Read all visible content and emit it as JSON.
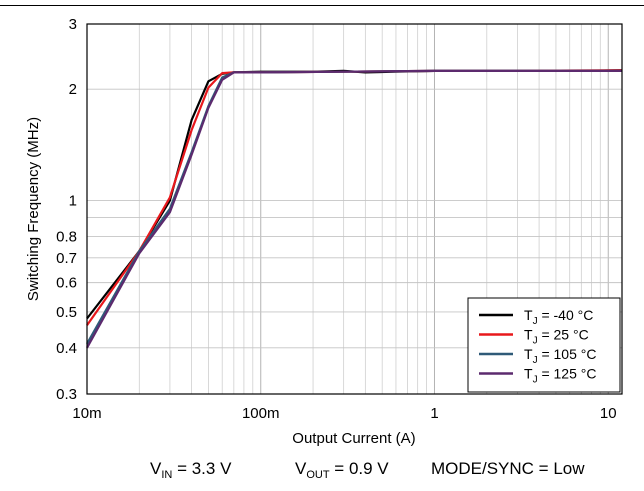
{
  "chart_data": {
    "type": "line",
    "x_scale": "log",
    "y_scale": "log",
    "xlim": [
      0.01,
      12
    ],
    "ylim": [
      0.3,
      3
    ],
    "grid": true,
    "legend_position": "bottom-right",
    "xlabel": "Output Current (A)",
    "ylabel": "Switching Frequency (MHz)",
    "x_ticks": [
      {
        "value": 0.01,
        "label": "10m"
      },
      {
        "value": 0.1,
        "label": "100m"
      },
      {
        "value": 1,
        "label": "1"
      },
      {
        "value": 10,
        "label": "10"
      }
    ],
    "y_ticks": [
      {
        "value": 0.3,
        "label": "0.3"
      },
      {
        "value": 0.4,
        "label": "0.4"
      },
      {
        "value": 0.5,
        "label": "0.5"
      },
      {
        "value": 0.6,
        "label": "0.6"
      },
      {
        "value": 0.7,
        "label": "0.7"
      },
      {
        "value": 0.8,
        "label": "0.8"
      },
      {
        "value": 1,
        "label": "1"
      },
      {
        "value": 2,
        "label": "2"
      },
      {
        "value": 3,
        "label": "3"
      }
    ],
    "series": [
      {
        "name_main": "T",
        "name_sub": "J",
        "name_rest": " = -40 °C",
        "color": "#000000",
        "x": [
          0.01,
          0.02,
          0.03,
          0.04,
          0.05,
          0.06,
          0.07,
          0.1,
          0.2,
          0.3,
          0.4,
          0.6,
          1,
          2,
          5,
          8,
          12
        ],
        "y": [
          0.48,
          0.73,
          1.0,
          1.65,
          2.1,
          2.2,
          2.22,
          2.23,
          2.23,
          2.24,
          2.22,
          2.23,
          2.24,
          2.24,
          2.24,
          2.24,
          2.25
        ]
      },
      {
        "name_main": "T",
        "name_sub": "J",
        "name_rest": " = 25 °C",
        "color": "#e8181c",
        "x": [
          0.01,
          0.02,
          0.03,
          0.04,
          0.05,
          0.06,
          0.07,
          0.1,
          0.3,
          1,
          3,
          12
        ],
        "y": [
          0.46,
          0.73,
          1.02,
          1.55,
          2.02,
          2.21,
          2.22,
          2.22,
          2.23,
          2.24,
          2.24,
          2.25
        ]
      },
      {
        "name_main": "T",
        "name_sub": "J",
        "name_rest": " = 105 °C",
        "color": "#2f5a78",
        "x": [
          0.01,
          0.02,
          0.03,
          0.04,
          0.05,
          0.06,
          0.07,
          0.1,
          0.3,
          1,
          3,
          12
        ],
        "y": [
          0.41,
          0.73,
          0.95,
          1.35,
          1.8,
          2.15,
          2.22,
          2.22,
          2.23,
          2.24,
          2.24,
          2.24
        ]
      },
      {
        "name_main": "T",
        "name_sub": "J",
        "name_rest": " = 125 °C",
        "color": "#5c2a6e",
        "x": [
          0.01,
          0.02,
          0.03,
          0.04,
          0.05,
          0.06,
          0.07,
          0.1,
          0.3,
          1,
          3,
          12
        ],
        "y": [
          0.4,
          0.72,
          0.93,
          1.33,
          1.78,
          2.12,
          2.22,
          2.22,
          2.23,
          2.24,
          2.24,
          2.24
        ]
      }
    ]
  },
  "conditions": {
    "vin": {
      "main": "V",
      "sub": "IN",
      "rest": " = 3.3 V"
    },
    "vout": {
      "main": "V",
      "sub": "OUT",
      "rest": " = 0.9 V"
    },
    "mode": "MODE/SYNC = Low"
  }
}
